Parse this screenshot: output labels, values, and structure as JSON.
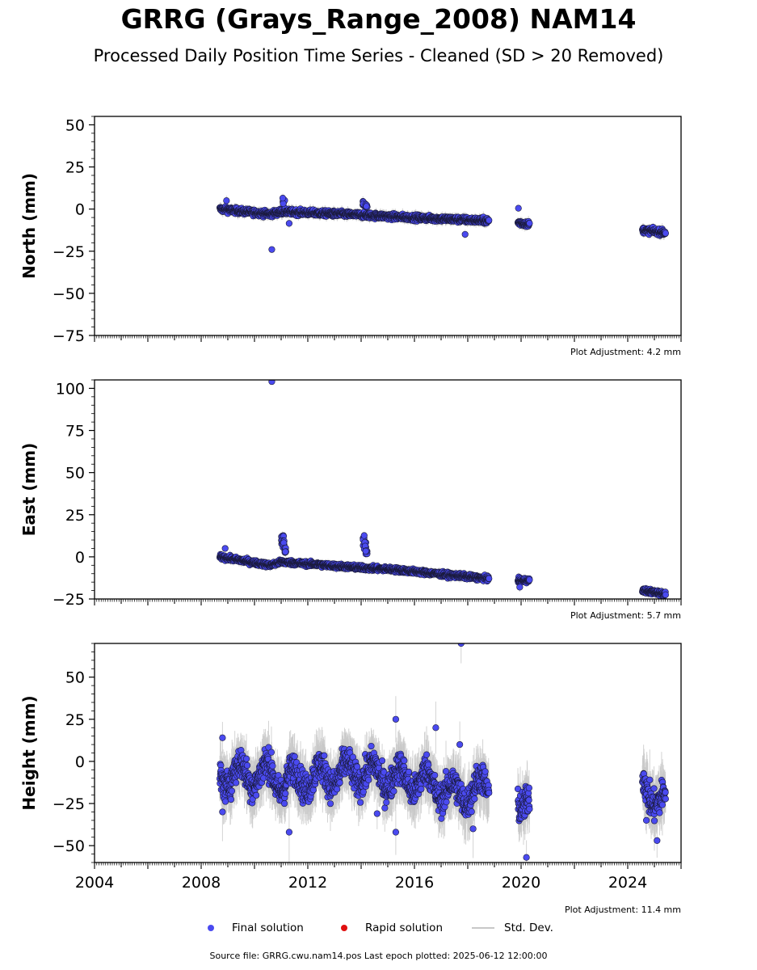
{
  "title": "GRRG (Grays_Range_2008) NAM14",
  "subtitle": "Processed Daily Position Time Series - Cleaned (SD > 20 Removed)",
  "colors": {
    "final": "#4a4af0",
    "rapid": "#e01010",
    "stddev": "#c8c8c8",
    "edge": "#1a1a3a"
  },
  "legend": {
    "final": "Final solution",
    "rapid": "Rapid solution",
    "stddev": "Std. Dev."
  },
  "footer": "Source file: GRRG.cwu.nam14.pos  Last epoch plotted: 2025-06-12 12:00:00",
  "chart_data": [
    {
      "type": "scatter",
      "ylabel": "North (mm)",
      "xlim": [
        2004,
        2026
      ],
      "ylim": [
        -75,
        55
      ],
      "yticks": [
        "50",
        "25",
        "0",
        "−25",
        "−50",
        "−75"
      ],
      "adjustment": "Plot Adjustment: 4.2 mm",
      "noise": 1.2,
      "trend": [
        [
          2008.7,
          0
        ],
        [
          2010.6,
          -3
        ],
        [
          2011.0,
          -1.5
        ],
        [
          2014.0,
          -3.5
        ],
        [
          2015.2,
          -4.5
        ],
        [
          2018.8,
          -7
        ],
        [
          2019.9,
          -8
        ],
        [
          2020.3,
          -9
        ],
        [
          2024.6,
          -12.5
        ],
        [
          2025.4,
          -14
        ]
      ],
      "spikes": [
        [
          2011.1,
          7
        ],
        [
          2014.1,
          5
        ],
        [
          2014.2,
          3
        ]
      ],
      "outliers": [
        [
          2010.65,
          -24
        ],
        [
          2008.95,
          5
        ],
        [
          2011.3,
          -8.5
        ],
        [
          2017.9,
          -15
        ],
        [
          2019.9,
          0.5
        ]
      ]
    },
    {
      "type": "scatter",
      "ylabel": "East (mm)",
      "xlim": [
        2004,
        2026
      ],
      "ylim": [
        -25,
        105
      ],
      "yticks": [
        "100",
        "75",
        "50",
        "25",
        "0",
        "−25"
      ],
      "adjustment": "Plot Adjustment: 5.7 mm",
      "noise": 1.0,
      "trend": [
        [
          2008.7,
          0
        ],
        [
          2010.6,
          -5
        ],
        [
          2011.0,
          -3
        ],
        [
          2014.0,
          -6.5
        ],
        [
          2015.2,
          -7.5
        ],
        [
          2018.8,
          -13
        ],
        [
          2019.9,
          -14
        ],
        [
          2020.3,
          -14
        ],
        [
          2024.6,
          -20
        ],
        [
          2025.4,
          -22
        ]
      ],
      "spikes": [
        [
          2011.05,
          13
        ],
        [
          2011.1,
          10
        ],
        [
          2011.15,
          6
        ],
        [
          2014.1,
          13
        ],
        [
          2014.15,
          9
        ],
        [
          2014.2,
          4
        ]
      ],
      "outliers": [
        [
          2010.65,
          104
        ],
        [
          2008.9,
          5
        ],
        [
          2019.95,
          -18
        ]
      ]
    },
    {
      "type": "scatter",
      "ylabel": "Height (mm)",
      "xlim": [
        2004,
        2026
      ],
      "ylim": [
        -60,
        70
      ],
      "yticks": [
        "50",
        "25",
        "0",
        "−25",
        "−50"
      ],
      "xticks": [
        "2004",
        "2008",
        "2012",
        "2016",
        "2020",
        "2024"
      ],
      "adjustment": "Plot Adjustment: 11.4 mm",
      "noise": 6.5,
      "seasonal": 7,
      "trend": [
        [
          2008.7,
          -8
        ],
        [
          2010.6,
          -8
        ],
        [
          2011.0,
          -12
        ],
        [
          2014.0,
          -6
        ],
        [
          2015.2,
          -10
        ],
        [
          2016.5,
          -12
        ],
        [
          2017.5,
          -20
        ],
        [
          2018.8,
          -15
        ],
        [
          2019.9,
          -20
        ],
        [
          2020.3,
          -25
        ],
        [
          2024.6,
          -15
        ],
        [
          2025.4,
          -25
        ]
      ],
      "spikes": [],
      "outliers": [
        [
          2017.75,
          70
        ],
        [
          2015.3,
          25
        ],
        [
          2016.8,
          20
        ],
        [
          2017.7,
          10
        ],
        [
          2008.8,
          14
        ],
        [
          2011.3,
          -42
        ],
        [
          2015.3,
          -42
        ],
        [
          2020.2,
          -57
        ],
        [
          2025.1,
          -47
        ],
        [
          2008.8,
          -30
        ],
        [
          2014.6,
          -31
        ],
        [
          2018.2,
          -40
        ],
        [
          2024.7,
          -35
        ]
      ]
    }
  ]
}
